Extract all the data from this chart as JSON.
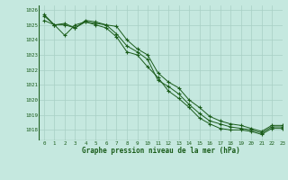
{
  "title": "Graphe pression niveau de la mer (hPa)",
  "xlim": [
    -0.5,
    23
  ],
  "ylim": [
    1017.3,
    1026.3
  ],
  "background_color": "#c5e8df",
  "grid_color": "#a8cfc4",
  "line_color": "#1a5c1a",
  "series1": [
    1025.3,
    1025.0,
    1024.3,
    1025.0,
    1025.2,
    1025.0,
    1024.8,
    1024.2,
    1023.2,
    1023.0,
    1022.2,
    1021.5,
    1020.6,
    1020.1,
    1019.5,
    1018.8,
    1018.4,
    1018.1,
    1018.0,
    1018.0,
    1017.9,
    1017.7,
    1018.1,
    1018.1
  ],
  "series2": [
    1025.6,
    1025.0,
    1025.1,
    1024.8,
    1025.2,
    1025.1,
    1025.0,
    1024.4,
    1023.6,
    1023.2,
    1022.7,
    1021.3,
    1020.9,
    1020.4,
    1019.7,
    1019.1,
    1018.6,
    1018.4,
    1018.2,
    1018.1,
    1018.0,
    1017.8,
    1018.2,
    1018.2
  ],
  "series3": [
    1025.7,
    1025.0,
    1025.0,
    1024.8,
    1025.3,
    1025.2,
    1025.0,
    1024.9,
    1024.0,
    1023.4,
    1023.0,
    1021.8,
    1021.2,
    1020.8,
    1020.0,
    1019.5,
    1018.9,
    1018.6,
    1018.4,
    1018.3,
    1018.1,
    1017.9,
    1018.3,
    1018.3
  ],
  "yticks": [
    1018,
    1019,
    1020,
    1021,
    1022,
    1023,
    1024,
    1025,
    1026
  ],
  "xticks": [
    0,
    1,
    2,
    3,
    4,
    5,
    6,
    7,
    8,
    9,
    10,
    11,
    12,
    13,
    14,
    15,
    16,
    17,
    18,
    19,
    20,
    21,
    22,
    23
  ]
}
